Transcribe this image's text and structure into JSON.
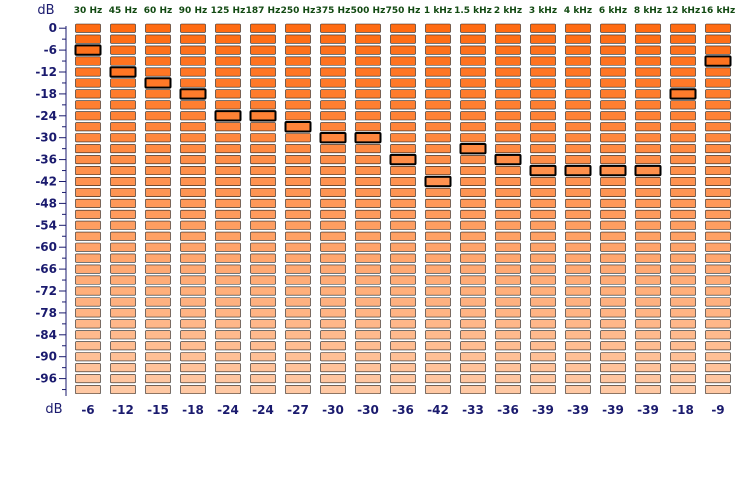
{
  "chart_data": {
    "type": "bar",
    "title": "",
    "ylabel": "dB",
    "value_row_label": "dB",
    "ylim": [
      -99,
      0
    ],
    "y_ticks": [
      "0",
      "-6",
      "-12",
      "-18",
      "-24",
      "-30",
      "-36",
      "-42",
      "-48",
      "-54",
      "-60",
      "-66",
      "-72",
      "-78",
      "-84",
      "-90",
      "-96"
    ],
    "categories": [
      "30 Hz",
      "45 Hz",
      "60 Hz",
      "90 Hz",
      "125 Hz",
      "187 Hz",
      "250 Hz",
      "375 Hz",
      "500 Hz",
      "750 Hz",
      "1 kHz",
      "1.5 kHz",
      "2 kHz",
      "3 kHz",
      "4 kHz",
      "6 kHz",
      "8 kHz",
      "12 kHz",
      "16 kHz"
    ],
    "values": [
      -6,
      -12,
      -15,
      -18,
      -24,
      -24,
      -27,
      -30,
      -30,
      -36,
      -42,
      -33,
      -36,
      -39,
      -39,
      -39,
      -39,
      -18,
      -9
    ],
    "value_labels": [
      "-6",
      "-12",
      "-15",
      "-18",
      "-24",
      "-24",
      "-27",
      "-30",
      "-30",
      "-36",
      "-42",
      "-33",
      "-36",
      "-39",
      "-39",
      "-39",
      "-39",
      "-18",
      "-9"
    ],
    "segment_step_db": 3,
    "colors": {
      "segment_top": "#ff6b12",
      "segment_bottom": "#ffc8a3",
      "segment_border": "#222222",
      "peak_marker": "#000000",
      "frequency_label": "#124a12",
      "axis_label": "#1a1a6e"
    }
  }
}
